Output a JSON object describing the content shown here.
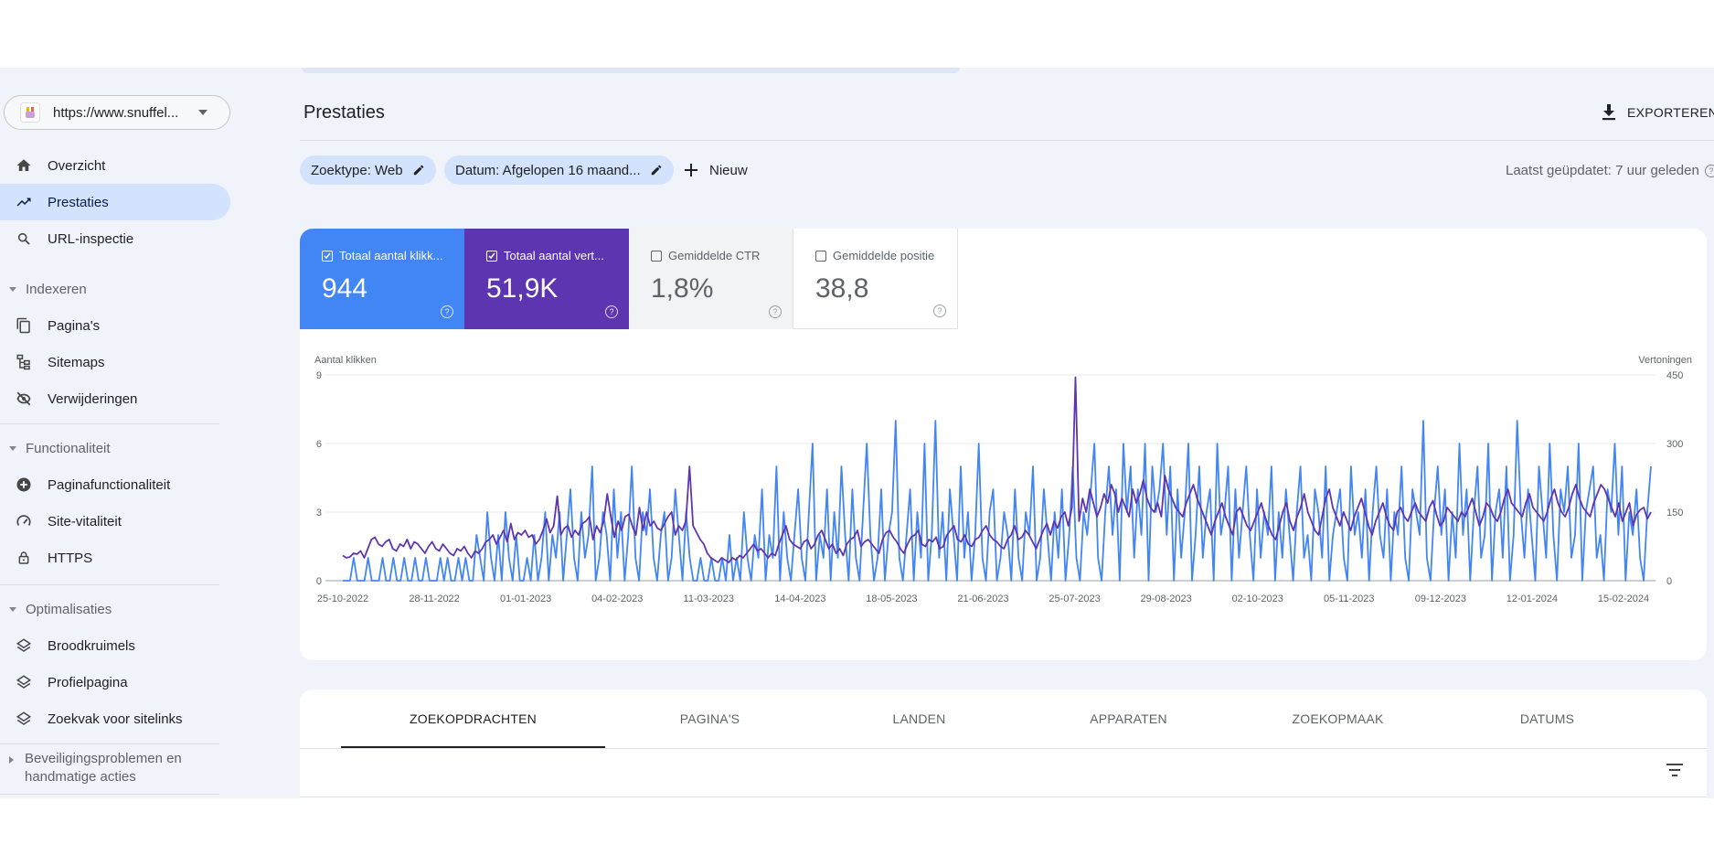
{
  "property": {
    "url": "https://www.snuffel..."
  },
  "nav": {
    "top": [
      {
        "label": "Overzicht",
        "icon": "home-icon"
      },
      {
        "label": "Prestaties",
        "icon": "trending-up-icon"
      },
      {
        "label": "URL-inspectie",
        "icon": "search-icon"
      }
    ],
    "sections": {
      "indexeren": "Indexeren",
      "functionaliteit": "Functionaliteit",
      "optimalisaties": "Optimalisaties",
      "beveiliging": "Beveiligingsproblemen en handmatige acties"
    },
    "indexeren": [
      {
        "label": "Pagina's",
        "icon": "pages-icon"
      },
      {
        "label": "Sitemaps",
        "icon": "sitemap-icon"
      },
      {
        "label": "Verwijderingen",
        "icon": "eye-off-icon"
      }
    ],
    "functionaliteit": [
      {
        "label": "Paginafunctionaliteit",
        "icon": "plus-circle-icon"
      },
      {
        "label": "Site-vitaliteit",
        "icon": "gauge-icon"
      },
      {
        "label": "HTTPS",
        "icon": "lock-icon"
      }
    ],
    "optimalisaties": [
      {
        "label": "Broodkruimels",
        "icon": "layers-icon"
      },
      {
        "label": "Profielpagina",
        "icon": "layers-icon"
      },
      {
        "label": "Zoekvak voor sitelinks",
        "icon": "layers-icon"
      }
    ]
  },
  "header": {
    "title": "Prestaties",
    "export_label": "EXPORTEREN"
  },
  "filters": {
    "chip1": "Zoektype: Web",
    "chip2": "Datum: Afgelopen 16 maand...",
    "new_label": "Nieuw",
    "last_updated": "Laatst geüpdatet: 7 uur geleden"
  },
  "metrics": [
    {
      "label": "Totaal aantal klikk...",
      "value": "944",
      "checked": true,
      "color": "#4285f4"
    },
    {
      "label": "Totaal aantal vert...",
      "value": "51,9K",
      "checked": true,
      "color": "#5e35b1"
    },
    {
      "label": "Gemiddelde CTR",
      "value": "1,8%",
      "checked": false
    },
    {
      "label": "Gemiddelde positie",
      "value": "38,8",
      "checked": false
    }
  ],
  "chart_data": {
    "type": "line",
    "ylabel_left": "Aantal klikken",
    "ylabel_right": "Vertoningen",
    "y_left_ticks": [
      "0",
      "3",
      "6",
      "9"
    ],
    "y_right_ticks": [
      "0",
      "150",
      "300",
      "450"
    ],
    "ylim_left": [
      0,
      9
    ],
    "ylim_right": [
      0,
      450
    ],
    "x_ticks": [
      "25-10-2022",
      "28-11-2022",
      "01-01-2023",
      "04-02-2023",
      "11-03-2023",
      "14-04-2023",
      "18-05-2023",
      "21-06-2023",
      "25-07-2023",
      "29-08-2023",
      "02-10-2023",
      "05-11-2023",
      "09-12-2023",
      "12-01-2024",
      "15-02-2024"
    ],
    "grid": true,
    "series": [
      {
        "color": "#4285f4",
        "axis": "left",
        "values": [
          0,
          0,
          0,
          1,
          0,
          0,
          0,
          1,
          0,
          0,
          0,
          1,
          0,
          0,
          1,
          0,
          0,
          1,
          0,
          0,
          1,
          0,
          0,
          1,
          0,
          0,
          0,
          1,
          0,
          1,
          0,
          0,
          1,
          0,
          1,
          0,
          0,
          2,
          1,
          0,
          3,
          1,
          0,
          2,
          0,
          3,
          1,
          0,
          2,
          0,
          0,
          1,
          0,
          2,
          0,
          1,
          3,
          0,
          2,
          1,
          3,
          0,
          2,
          4,
          1,
          0,
          3,
          1,
          2,
          5,
          0,
          1,
          3,
          2,
          0,
          4,
          1,
          3,
          0,
          2,
          5,
          1,
          0,
          3,
          2,
          4,
          1,
          0,
          2,
          3,
          0,
          1,
          4,
          2,
          0,
          3,
          1,
          0,
          0,
          1,
          0,
          0,
          1,
          0,
          0,
          1,
          0,
          2,
          0,
          1,
          0,
          3,
          1,
          0,
          2,
          1,
          4,
          0,
          2,
          1,
          5,
          0,
          3,
          1,
          0,
          2,
          4,
          1,
          0,
          3,
          6,
          0,
          2,
          1,
          4,
          0,
          3,
          1,
          5,
          2,
          0,
          4,
          1,
          0,
          3,
          6,
          2,
          0,
          1,
          4,
          0,
          2,
          3,
          7,
          1,
          0,
          2,
          4,
          0,
          3,
          1,
          6,
          0,
          2,
          7,
          1,
          3,
          0,
          4,
          2,
          0,
          5,
          1,
          3,
          0,
          2,
          6,
          1,
          0,
          3,
          4,
          0,
          1,
          3,
          2,
          0,
          4,
          1,
          0,
          3,
          2,
          5,
          0,
          1,
          4,
          2,
          0,
          3,
          1,
          4,
          0,
          2,
          5,
          1,
          0,
          3,
          2,
          4,
          6,
          1,
          0,
          3,
          5,
          2,
          4,
          0,
          6,
          3,
          5,
          1,
          4,
          2,
          6,
          0,
          5,
          3,
          4,
          6,
          2,
          5,
          0,
          4,
          1,
          3,
          6,
          0,
          2,
          5,
          1,
          3,
          4,
          0,
          6,
          2,
          3,
          5,
          0,
          4,
          1,
          3,
          5,
          2,
          0,
          4,
          1,
          3,
          2,
          5,
          0,
          3,
          1,
          4,
          2,
          0,
          3,
          5,
          1,
          2,
          0,
          4,
          3,
          1,
          5,
          0,
          2,
          3,
          4,
          1,
          0,
          5,
          2,
          3,
          1,
          4,
          0,
          3,
          5,
          2,
          1,
          4,
          0,
          3,
          2,
          5,
          1,
          0,
          4,
          3,
          2,
          7,
          1,
          0,
          3,
          5,
          2,
          4,
          0,
          3,
          1,
          6,
          2,
          4,
          0,
          3,
          5,
          1,
          2,
          6,
          0,
          3,
          4,
          1,
          5,
          0,
          2,
          7,
          3,
          1,
          4,
          2,
          0,
          5,
          3,
          1,
          6,
          2,
          0,
          4,
          3,
          5,
          1,
          2,
          6,
          0,
          3,
          4,
          5,
          1,
          2,
          0,
          4,
          3,
          6,
          2,
          5,
          0,
          3,
          2,
          4,
          1,
          0,
          3,
          5
        ]
      },
      {
        "color": "#5e35b1",
        "axis": "right",
        "values": [
          55,
          50,
          52,
          60,
          58,
          65,
          50,
          70,
          90,
          95,
          80,
          75,
          85,
          90,
          70,
          65,
          80,
          75,
          90,
          70,
          85,
          80,
          70,
          60,
          75,
          85,
          70,
          65,
          80,
          70,
          60,
          55,
          70,
          65,
          75,
          60,
          50,
          65,
          60,
          70,
          85,
          90,
          100,
          80,
          95,
          110,
          85,
          125,
          90,
          105,
          100,
          110,
          95,
          100,
          80,
          90,
          110,
          135,
          105,
          120,
          185,
          100,
          115,
          120,
          95,
          110,
          100,
          125,
          130,
          140,
          90,
          120,
          105,
          130,
          190,
          140,
          95,
          130,
          110,
          140,
          145,
          120,
          100,
          160,
          110,
          150,
          120,
          130,
          115,
          110,
          125,
          140,
          150,
          100,
          120,
          110,
          130,
          250,
          120,
          105,
          90,
          80,
          60,
          50,
          45,
          40,
          50,
          45,
          40,
          50,
          45,
          55,
          50,
          60,
          70,
          80,
          65,
          70,
          60,
          50,
          60,
          55,
          80,
          100,
          120,
          90,
          80,
          75,
          70,
          85,
          90,
          70,
          80,
          100,
          110,
          90,
          70,
          80,
          60,
          70,
          55,
          80,
          90,
          95,
          110,
          75,
          85,
          90,
          80,
          70,
          60,
          90,
          105,
          110,
          95,
          85,
          70,
          60,
          80,
          95,
          100,
          110,
          80,
          75,
          90,
          85,
          95,
          70,
          75,
          100,
          110,
          120,
          90,
          85,
          100,
          80,
          75,
          90,
          95,
          110,
          120,
          100,
          90,
          85,
          75,
          70,
          90,
          100,
          120,
          90,
          95,
          110,
          100,
          85,
          70,
          90,
          110,
          125,
          100,
          130,
          115,
          140,
          150,
          120,
          160,
          445,
          130,
          180,
          150,
          200,
          170,
          140,
          160,
          190,
          170,
          210,
          190,
          150,
          180,
          160,
          140,
          200,
          170,
          190,
          220,
          180,
          160,
          150,
          170,
          140,
          230,
          200,
          180,
          160,
          150,
          140,
          170,
          190,
          210,
          180,
          160,
          140,
          120,
          100,
          130,
          150,
          170,
          140,
          120,
          100,
          150,
          160,
          140,
          120,
          110,
          130,
          150,
          170,
          140,
          120,
          100,
          90,
          120,
          150,
          170,
          130,
          110,
          140,
          160,
          190,
          150,
          130,
          110,
          100,
          140,
          180,
          200,
          160,
          140,
          120,
          150,
          130,
          110,
          140,
          160,
          180,
          150,
          120,
          100,
          130,
          150,
          170,
          140,
          120,
          110,
          150,
          160,
          140,
          130,
          150,
          170,
          150,
          140,
          130,
          160,
          175,
          145,
          120,
          130,
          160,
          150,
          140,
          130,
          150,
          140,
          160,
          180,
          150,
          120,
          140,
          170,
          160,
          140,
          130,
          150,
          180,
          200,
          170,
          160,
          150,
          140,
          170,
          190,
          160,
          150,
          140,
          130,
          150,
          180,
          200,
          170,
          150,
          140,
          160,
          190,
          210,
          180,
          160,
          150,
          140,
          170,
          190,
          210,
          200,
          180,
          160,
          140,
          170,
          130,
          150,
          170,
          120,
          145,
          155,
          160,
          135,
          150
        ]
      }
    ]
  },
  "tabs": [
    "ZOEKOPDRACHTEN",
    "PAGINA'S",
    "LANDEN",
    "APPARATEN",
    "ZOEKOPMAAK",
    "DATUMS"
  ]
}
